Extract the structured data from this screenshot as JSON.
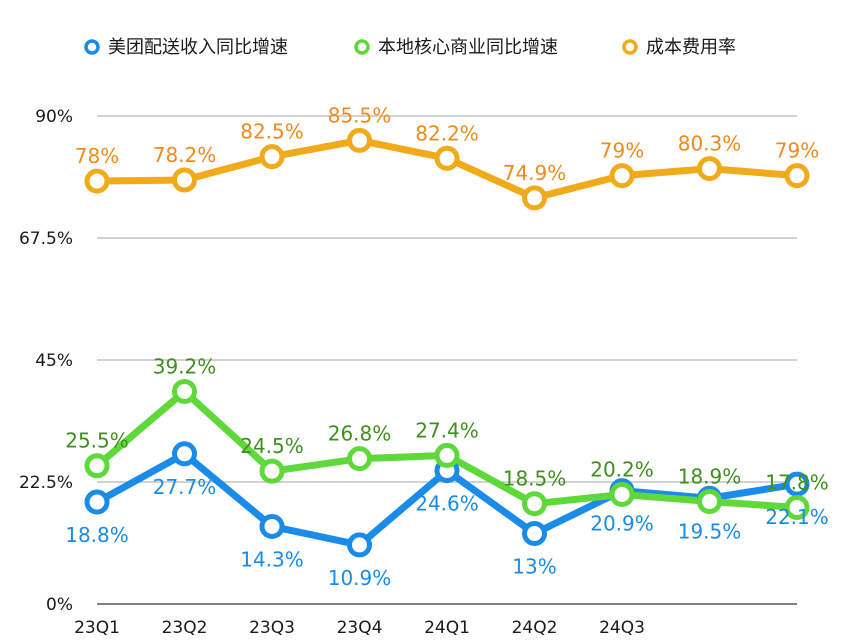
{
  "chart_data": {
    "type": "line",
    "categories": [
      "23Q1",
      "23Q2",
      "23Q3",
      "23Q4",
      "24Q1",
      "24Q2",
      "24Q3",
      "",
      ""
    ],
    "y_ticks": [
      "0%",
      "22.5%",
      "45%",
      "67.5%",
      "90%"
    ],
    "ylim": [
      0,
      90
    ],
    "grid": true,
    "legend_position": "top",
    "series": [
      {
        "name": "美团配送收入同比增速",
        "color": "#1a8ce8",
        "label_color": "#1a8ce8",
        "values": [
          18.8,
          27.7,
          14.3,
          10.9,
          24.6,
          13,
          20.9,
          19.5,
          22.1
        ],
        "labels": [
          "18.8%",
          "27.7%",
          "14.3%",
          "10.9%",
          "24.6%",
          "13%",
          "20.9%",
          "19.5%",
          "22.1%"
        ]
      },
      {
        "name": "本地核心商业同比增速",
        "color": "#5fd83a",
        "label_color": "#3f8f1f",
        "values": [
          25.5,
          39.2,
          24.5,
          26.8,
          27.4,
          18.5,
          20.2,
          18.9,
          17.8
        ],
        "labels": [
          "25.5%",
          "39.2%",
          "24.5%",
          "26.8%",
          "27.4%",
          "18.5%",
          "20.2%",
          "18.9%",
          "17.8%"
        ]
      },
      {
        "name": "成本费用率",
        "color": "#f0aa1a",
        "label_color": "#ef8a1e",
        "values": [
          78,
          78.2,
          82.5,
          85.5,
          82.2,
          74.9,
          79,
          80.3,
          79
        ],
        "labels": [
          "78%",
          "78.2%",
          "82.5%",
          "85.5%",
          "82.2%",
          "74.9%",
          "79%",
          "80.3%",
          "79%"
        ]
      }
    ]
  }
}
